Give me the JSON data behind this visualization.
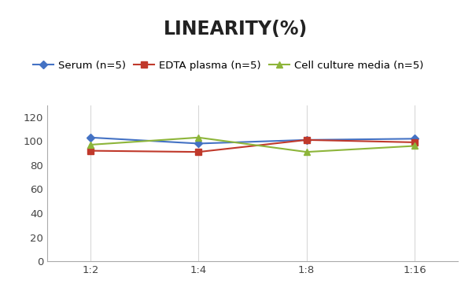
{
  "title": "LINEARITY(%)",
  "x_labels": [
    "1:2",
    "1:4",
    "1:8",
    "1:16"
  ],
  "series": [
    {
      "label": "Serum (n=5)",
      "values": [
        103,
        98,
        101,
        102
      ],
      "color": "#4472C4",
      "marker": "D"
    },
    {
      "label": "EDTA plasma (n=5)",
      "values": [
        92,
        91,
        101,
        99
      ],
      "color": "#C0392B",
      "marker": "s"
    },
    {
      "label": "Cell culture media (n=5)",
      "values": [
        97,
        103,
        91,
        96
      ],
      "color": "#8DB53A",
      "marker": "^"
    }
  ],
  "ylim": [
    0,
    130
  ],
  "yticks": [
    0,
    20,
    40,
    60,
    80,
    100,
    120
  ],
  "title_fontsize": 17,
  "legend_fontsize": 9.5,
  "tick_fontsize": 9.5,
  "background_color": "#FFFFFF",
  "grid_color": "#D8D8D8",
  "line_color": "#AAAAAA"
}
